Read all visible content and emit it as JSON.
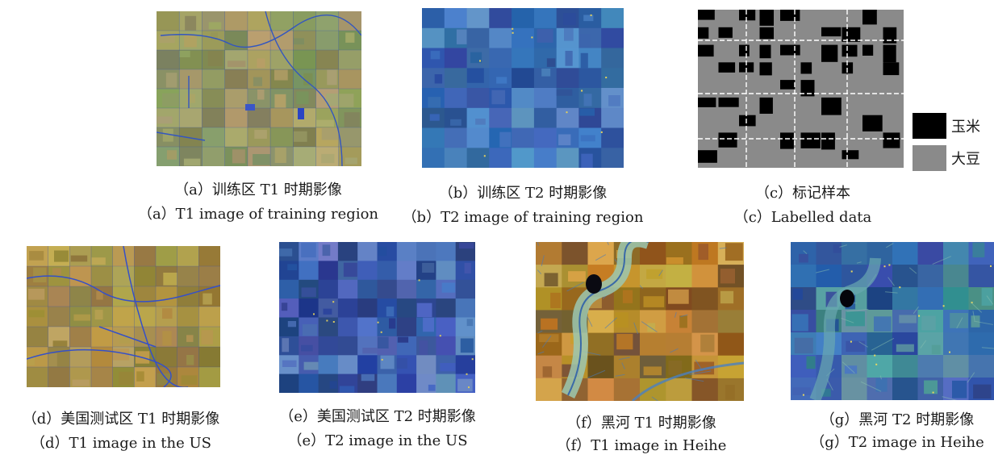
{
  "colors": {
    "corn": "#000000",
    "soybean": "#8a8a8a",
    "t1_base": "#8f9a63",
    "t2_base": "#3d6fb8",
    "us_t1_base": "#a89148",
    "us_t2_base": "#3a5aa8",
    "heihe_t1_base": "#b8852e",
    "heihe_t2_base": "#2f56a0"
  },
  "legend": {
    "corn": "玉米",
    "soybean": "大豆"
  },
  "panels": {
    "a": {
      "cn": "（a）训练区 T1 时期影像",
      "en": "（a）T1 image of training region"
    },
    "b": {
      "cn": "（b）训练区 T2 时期影像",
      "en": "（b）T2 image of training region"
    },
    "c": {
      "cn": "（c）标记样本",
      "en": "（c）Labelled data"
    },
    "d": {
      "cn": "（d）美国测试区 T1 时期影像",
      "en": "（d）T1 image in the US"
    },
    "e": {
      "cn": "（e）美国测试区 T2 时期影像",
      "en": "（e）T2 image in the US"
    },
    "f": {
      "cn": "（f）黑河 T1 时期影像",
      "en": "（f）T1 image in Heihe"
    },
    "g": {
      "cn": "（g）黑河 T2 时期影像",
      "en": "（g）T2 image in Heihe"
    }
  }
}
